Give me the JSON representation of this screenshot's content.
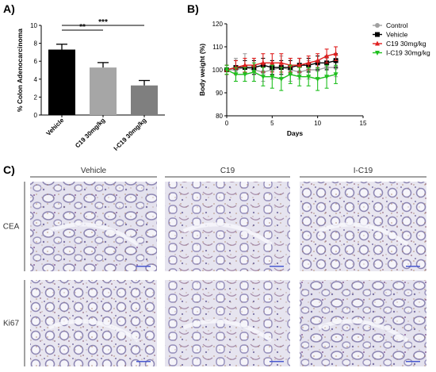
{
  "panel_labels": {
    "a": "A)",
    "b": "B)",
    "c": "C)"
  },
  "chart_data": [
    {
      "type": "bar",
      "categories": [
        "Vehicle",
        "C19 30mg/kg",
        "I-C19 30mg/kg"
      ],
      "values": [
        7.3,
        5.3,
        3.3
      ],
      "errors": [
        0.6,
        0.55,
        0.55
      ],
      "colors": [
        "#000000",
        "#a6a6a6",
        "#7f7f7f"
      ],
      "ylabel": "% Colon Adenocarcinoma",
      "ylim": [
        0,
        10
      ],
      "yticks": [
        "0",
        "2",
        "4",
        "6",
        "8",
        "10"
      ],
      "significance": [
        {
          "from": 0,
          "to": 1,
          "label": "**"
        },
        {
          "from": 0,
          "to": 2,
          "label": "***"
        }
      ]
    },
    {
      "type": "line",
      "xlabel": "Days",
      "ylabel": "Body weight (%)",
      "xlim": [
        0,
        15
      ],
      "ylim": [
        80,
        120
      ],
      "xticks": [
        "0",
        "5",
        "10",
        "15"
      ],
      "yticks": [
        "80",
        "90",
        "100",
        "110",
        "120"
      ],
      "legend_position": "right",
      "x": [
        0,
        1,
        2,
        3,
        4,
        5,
        6,
        7,
        8,
        9,
        10,
        11,
        12
      ],
      "series": [
        {
          "name": "Control",
          "color": "#a0a0a0",
          "marker": "circle",
          "values": [
            100,
            100,
            101,
            100,
            99,
            100,
            101,
            100,
            99,
            100,
            100,
            101,
            101
          ],
          "errors": [
            2,
            5,
            6,
            5,
            4,
            4,
            5,
            5,
            3,
            4,
            4,
            4,
            4
          ]
        },
        {
          "name": "Vehicle",
          "color": "#000000",
          "marker": "square",
          "values": [
            100,
            101,
            101,
            101,
            102,
            101,
            101,
            101,
            102,
            102,
            103,
            103,
            104
          ],
          "errors": [
            2,
            3,
            3,
            3,
            3,
            3,
            3,
            3,
            3,
            3,
            3,
            3,
            3
          ]
        },
        {
          "name": "C19 30mg/kg",
          "color": "#e02020",
          "marker": "triangle-up",
          "values": [
            100,
            101,
            102,
            102,
            103,
            103,
            103,
            102,
            102,
            103,
            104,
            106,
            107
          ],
          "errors": [
            2,
            3,
            3,
            3,
            4,
            4,
            4,
            3,
            3,
            3,
            3,
            3,
            3
          ]
        },
        {
          "name": "I-C19 30mg/kg",
          "color": "#20c020",
          "marker": "triangle-down",
          "values": [
            100,
            98,
            98,
            99,
            97,
            97,
            96,
            98,
            97,
            97,
            96,
            97,
            98
          ],
          "errors": [
            2,
            3,
            3,
            4,
            4,
            5,
            5,
            4,
            4,
            4,
            5,
            5,
            4
          ]
        }
      ]
    }
  ],
  "panel_c": {
    "columns": [
      "Vehicle",
      "C19",
      "I-C19"
    ],
    "rows": [
      "CEA",
      "Ki67"
    ]
  }
}
